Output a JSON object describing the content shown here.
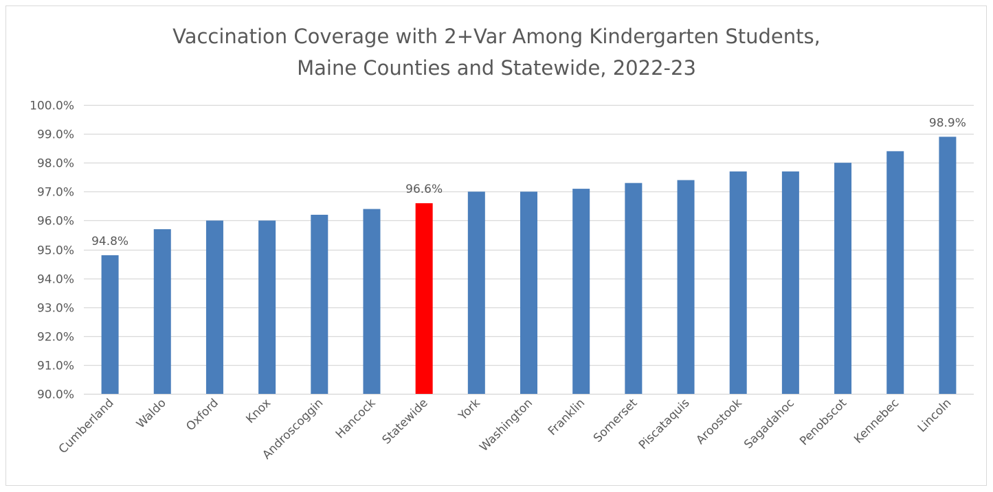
{
  "chart_data": {
    "type": "bar",
    "title_lines": [
      "Vaccination Coverage with 2+Var Among Kindergarten Students,",
      "Maine Counties and Statewide, 2022-23"
    ],
    "xlabel": "",
    "ylabel": "",
    "ylim": [
      90.0,
      100.0
    ],
    "y_ticks": [
      "90.0%",
      "91.0%",
      "92.0%",
      "93.0%",
      "94.0%",
      "95.0%",
      "96.0%",
      "97.0%",
      "98.0%",
      "99.0%",
      "100.0%"
    ],
    "y_tick_values": [
      90,
      91,
      92,
      93,
      94,
      95,
      96,
      97,
      98,
      99,
      100
    ],
    "grid": true,
    "legend": "none",
    "categories": [
      "Cumberland",
      "Waldo",
      "Oxford",
      "Knox",
      "Androscoggin",
      "Hancock",
      "Statewide",
      "York",
      "Washington",
      "Franklin",
      "Somerset",
      "Piscataquis",
      "Aroostook",
      "Sagadahoc",
      "Penobscot",
      "Kennebec",
      "Lincoln"
    ],
    "values": [
      94.8,
      95.7,
      96.0,
      96.0,
      96.2,
      96.4,
      96.6,
      97.0,
      97.0,
      97.1,
      97.3,
      97.4,
      97.7,
      97.7,
      98.0,
      98.4,
      98.9
    ],
    "data_labels": [
      {
        "category": "Cumberland",
        "text": "94.8%"
      },
      {
        "category": "Statewide",
        "text": "96.6%"
      },
      {
        "category": "Lincoln",
        "text": "98.9%"
      }
    ],
    "colors": {
      "default_bar": "#4a7ebb",
      "highlight_bar": "#ff0000",
      "highlight_category": "Statewide",
      "gridline": "#d9d9d9",
      "text": "#595959"
    }
  }
}
